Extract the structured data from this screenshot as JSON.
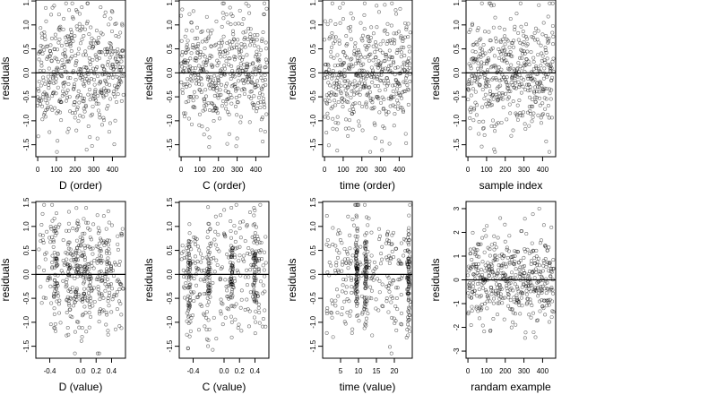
{
  "chart_data": [
    {
      "type": "scatter",
      "xlabel": "D (order)",
      "ylabel": "residuals",
      "xlim": [
        -10,
        470
      ],
      "ylim": [
        -1.75,
        1.52
      ],
      "xticks": [
        0,
        100,
        200,
        300,
        400
      ],
      "yticks": [
        -1.5,
        -1.0,
        -0.5,
        0.0,
        0.5,
        1.0,
        1.5
      ],
      "ytick_labels": [
        "-1.5",
        "-1.0",
        "-0.5",
        "0.0",
        "0.5",
        "1.0",
        "1.5"
      ],
      "hline": 0,
      "points": {
        "kind": "order",
        "n": 460,
        "sd": 0.6,
        "seed": 11,
        "lo": -1.65,
        "hi": 1.45
      }
    },
    {
      "type": "scatter",
      "xlabel": "C (order)",
      "ylabel": "residuals",
      "xlim": [
        -10,
        470
      ],
      "ylim": [
        -1.75,
        1.52
      ],
      "xticks": [
        0,
        100,
        200,
        300,
        400
      ],
      "yticks": [
        -1.5,
        -1.0,
        -0.5,
        0.0,
        0.5,
        1.0,
        1.5
      ],
      "ytick_labels": [
        "-1.5",
        "-1.0",
        "-0.5",
        "0.0",
        "0.5",
        "1.0",
        "1.5"
      ],
      "hline": 0,
      "points": {
        "kind": "order",
        "n": 460,
        "sd": 0.6,
        "seed": 23,
        "lo": -1.65,
        "hi": 1.45
      }
    },
    {
      "type": "scatter",
      "xlabel": "time (order)",
      "ylabel": "residuals",
      "xlim": [
        -10,
        470
      ],
      "ylim": [
        -1.75,
        1.52
      ],
      "xticks": [
        0,
        100,
        200,
        300,
        400
      ],
      "yticks": [
        -1.5,
        -1.0,
        -0.5,
        0.0,
        0.5,
        1.0,
        1.5
      ],
      "ytick_labels": [
        "-1.5",
        "-1.0",
        "-0.5",
        "0.0",
        "0.5",
        "1.0",
        "1.5"
      ],
      "hline": 0,
      "points": {
        "kind": "order",
        "n": 460,
        "sd": 0.6,
        "seed": 37,
        "lo": -1.65,
        "hi": 1.45
      }
    },
    {
      "type": "scatter",
      "xlabel": "sample index",
      "ylabel": "residuals",
      "xlim": [
        -10,
        470
      ],
      "ylim": [
        -1.75,
        1.52
      ],
      "xticks": [
        0,
        100,
        200,
        300,
        400
      ],
      "yticks": [
        -1.5,
        -1.0,
        -0.5,
        0.0,
        0.5,
        1.0,
        1.5
      ],
      "ytick_labels": [
        "-1.5",
        "-1.0",
        "-0.5",
        "0.0",
        "0.5",
        "1.0",
        "1.5"
      ],
      "hline": 0,
      "points": {
        "kind": "order",
        "n": 460,
        "sd": 0.6,
        "seed": 41,
        "lo": -1.65,
        "hi": 1.45
      }
    },
    {
      "type": "scatter",
      "xlabel": "D (value)",
      "ylabel": "residuals",
      "xlim": [
        -0.58,
        0.58
      ],
      "ylim": [
        -1.75,
        1.52
      ],
      "xticks": [
        -0.4,
        0.0,
        0.2,
        0.4
      ],
      "xtick_labels": [
        "-0.4",
        "0.0",
        "0.2",
        "0.4"
      ],
      "yticks": [
        -1.5,
        -1.0,
        -0.5,
        0.0,
        0.5,
        1.0,
        1.5
      ],
      "ytick_labels": [
        "-1.5",
        "-1.0",
        "-0.5",
        "0.0",
        "0.5",
        "1.0",
        "1.5"
      ],
      "hline": 0,
      "points": {
        "kind": "value",
        "n": 460,
        "sd": 0.6,
        "seed": 53,
        "lo": -1.65,
        "hi": 1.45,
        "xmin": -0.55,
        "xmax": 0.55,
        "clusters": [
          -0.32,
          -0.15,
          -0.05,
          0.05,
          0.12,
          0.25,
          0.35
        ],
        "jitter": 0.02
      }
    },
    {
      "type": "scatter",
      "xlabel": "C (value)",
      "ylabel": "residuals",
      "xlim": [
        -0.58,
        0.58
      ],
      "ylim": [
        -1.75,
        1.52
      ],
      "xticks": [
        -0.4,
        0.0,
        0.2,
        0.4
      ],
      "xtick_labels": [
        "-0.4",
        "0.0",
        "0.2",
        "0.4"
      ],
      "yticks": [
        -1.5,
        -1.0,
        -0.5,
        0.0,
        0.5,
        1.0,
        1.5
      ],
      "ytick_labels": [
        "-1.5",
        "-1.0",
        "-0.5",
        "0.0",
        "0.5",
        "1.0",
        "1.5"
      ],
      "hline": 0,
      "points": {
        "kind": "value",
        "n": 460,
        "sd": 0.6,
        "seed": 67,
        "lo": -1.65,
        "hi": 1.45,
        "xmin": -0.55,
        "xmax": 0.55,
        "clusters": [
          -0.45,
          -0.2,
          0.1,
          0.4
        ],
        "jitter": 0.012
      }
    },
    {
      "type": "scatter",
      "xlabel": "time (value)",
      "ylabel": "residuals",
      "xlim": [
        0,
        25
      ],
      "ylim": [
        -1.75,
        1.52
      ],
      "xticks": [
        5,
        10,
        15,
        20
      ],
      "yticks": [
        -1.5,
        -1.0,
        -0.5,
        0.0,
        0.5,
        1.0,
        1.5
      ],
      "ytick_labels": [
        "-1.5",
        "-1.0",
        "-0.5",
        "0.0",
        "0.5",
        "1.0",
        "1.5"
      ],
      "hline": 0,
      "points": {
        "kind": "value",
        "n": 460,
        "sd": 0.6,
        "seed": 79,
        "lo": -1.65,
        "hi": 1.45,
        "xmin": 1,
        "xmax": 24,
        "clusters": [
          9.5,
          12,
          24
        ],
        "jitter": 0.2
      }
    },
    {
      "type": "scatter",
      "xlabel": "randam example",
      "ylabel": "residuals",
      "xlim": [
        -10,
        470
      ],
      "ylim": [
        -3.3,
        3.3
      ],
      "xticks": [
        0,
        100,
        200,
        300,
        400
      ],
      "yticks": [
        -3,
        -2,
        -1,
        0,
        1,
        2,
        3
      ],
      "hline": 0,
      "points": {
        "kind": "order",
        "n": 460,
        "sd": 0.95,
        "seed": 97,
        "lo": -3.0,
        "hi": 3.0
      }
    }
  ]
}
